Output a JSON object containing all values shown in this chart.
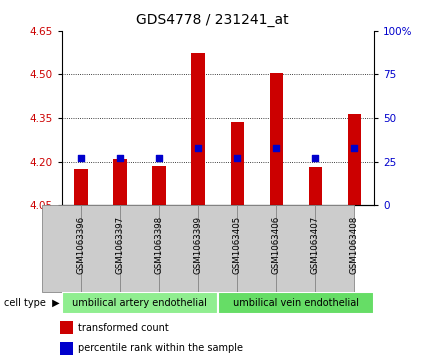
{
  "title": "GDS4778 / 231241_at",
  "samples": [
    "GSM1063396",
    "GSM1063397",
    "GSM1063398",
    "GSM1063399",
    "GSM1063405",
    "GSM1063406",
    "GSM1063407",
    "GSM1063408"
  ],
  "transformed_count": [
    4.175,
    4.21,
    4.185,
    4.575,
    4.335,
    4.505,
    4.18,
    4.365
  ],
  "percentile_rank": [
    27,
    27,
    27,
    33,
    27,
    33,
    27,
    33
  ],
  "ylim_left": [
    4.05,
    4.65
  ],
  "ylim_right": [
    0,
    100
  ],
  "yticks_left": [
    4.05,
    4.2,
    4.35,
    4.5,
    4.65
  ],
  "yticks_right": [
    0,
    25,
    50,
    75,
    100
  ],
  "ytick_labels_right": [
    "0",
    "25",
    "50",
    "75",
    "100%"
  ],
  "bar_bottom": 4.05,
  "bar_color": "#cc0000",
  "dot_color": "#0000cc",
  "cell_type_groups": [
    {
      "label": "umbilical artery endothelial",
      "start": 0,
      "end": 4,
      "color": "#90ee90"
    },
    {
      "label": "umbilical vein endothelial",
      "start": 4,
      "end": 8,
      "color": "#66dd66"
    }
  ],
  "cell_type_label": "cell type",
  "legend_items": [
    {
      "label": "transformed count",
      "color": "#cc0000"
    },
    {
      "label": "percentile rank within the sample",
      "color": "#0000cc"
    }
  ],
  "left_tick_color": "#cc0000",
  "right_tick_color": "#0000cc",
  "background_color": "#ffffff",
  "plot_bg_color": "#ffffff",
  "tick_area_bg": "#cccccc",
  "grid_yticks": [
    4.2,
    4.35,
    4.5
  ],
  "bar_width": 0.35
}
